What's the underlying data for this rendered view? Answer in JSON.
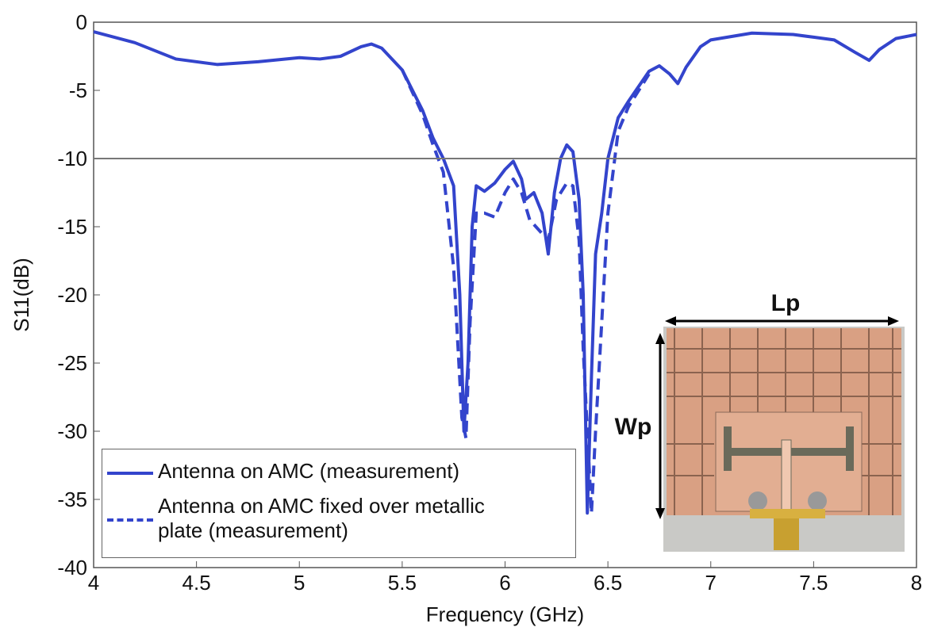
{
  "chart_data": {
    "type": "line",
    "xlabel": "Frequency (GHz)",
    "ylabel": "S11(dB)",
    "xlim": [
      4,
      8
    ],
    "xticks": [
      4,
      4.5,
      5,
      5.5,
      6,
      6.5,
      7,
      7.5,
      8
    ],
    "ylim": [
      -40,
      0
    ],
    "yticks": [
      0,
      -5,
      -10,
      -15,
      -20,
      -25,
      -30,
      -35,
      -40
    ],
    "hline": {
      "value": -10,
      "color": "#777777"
    },
    "legend": "lower left",
    "annotations": [
      "Lp",
      "Wp"
    ],
    "series": [
      {
        "name": "Antenna on AMC (measurement)",
        "color": "#3344cc",
        "style": "solid",
        "x": [
          4.0,
          4.2,
          4.4,
          4.6,
          4.8,
          5.0,
          5.1,
          5.2,
          5.3,
          5.35,
          5.4,
          5.5,
          5.6,
          5.65,
          5.7,
          5.75,
          5.78,
          5.8,
          5.82,
          5.84,
          5.86,
          5.9,
          5.95,
          6.0,
          6.04,
          6.08,
          6.1,
          6.14,
          6.18,
          6.21,
          6.24,
          6.27,
          6.3,
          6.33,
          6.36,
          6.38,
          6.4,
          6.42,
          6.44,
          6.47,
          6.5,
          6.55,
          6.6,
          6.7,
          6.75,
          6.8,
          6.84,
          6.88,
          6.95,
          7.0,
          7.2,
          7.4,
          7.5,
          7.6,
          7.7,
          7.77,
          7.82,
          7.9,
          8.0
        ],
        "values": [
          -0.7,
          -1.5,
          -2.7,
          -3.1,
          -2.9,
          -2.6,
          -2.7,
          -2.5,
          -1.8,
          -1.6,
          -1.9,
          -3.5,
          -6.5,
          -8.5,
          -10,
          -12,
          -20,
          -30,
          -25,
          -15,
          -12,
          -12.4,
          -11.8,
          -10.8,
          -10.2,
          -11.5,
          -13,
          -12.5,
          -14,
          -17,
          -12.5,
          -10,
          -9,
          -9.5,
          -13,
          -20,
          -36,
          -26,
          -17,
          -14,
          -10,
          -7,
          -5.8,
          -3.6,
          -3.2,
          -3.8,
          -4.5,
          -3.3,
          -1.8,
          -1.3,
          -0.8,
          -0.9,
          -1.1,
          -1.3,
          -2.2,
          -2.8,
          -2,
          -1.2,
          -0.9
        ]
      },
      {
        "name": "Antenna on AMC fixed over metallic plate (measurement)",
        "color": "#3344cc",
        "style": "dashed",
        "x": [
          5.5,
          5.6,
          5.65,
          5.7,
          5.75,
          5.79,
          5.81,
          5.83,
          5.86,
          5.9,
          5.95,
          6.0,
          6.04,
          6.08,
          6.12,
          6.18,
          6.21,
          6.25,
          6.3,
          6.33,
          6.36,
          6.38,
          6.42,
          6.44,
          6.47,
          6.5,
          6.55,
          6.6,
          6.7
        ],
        "values": [
          -3.5,
          -6.8,
          -9,
          -11,
          -18,
          -29,
          -30.5,
          -22,
          -14,
          -14,
          -14.3,
          -12.5,
          -11.5,
          -12.5,
          -14.5,
          -15.5,
          -16,
          -13,
          -11.8,
          -12,
          -16,
          -24,
          -36,
          -30,
          -22,
          -14,
          -8,
          -6.2,
          -3.8
        ]
      }
    ]
  }
}
